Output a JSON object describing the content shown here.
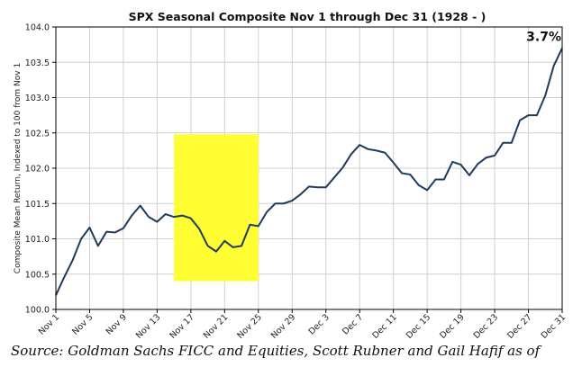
{
  "chart_data": {
    "type": "line",
    "title": "SPX Seasonal Composite Nov 1 through Dec 31 (1928 - )",
    "ylabel": "Composite Mean Return, Indexed to 100 from Nov 1",
    "xlabel": "",
    "ylim": [
      100.0,
      104.0
    ],
    "yticks": [
      100.0,
      100.5,
      101.0,
      101.5,
      102.0,
      102.5,
      103.0,
      103.5,
      104.0
    ],
    "ytick_labels": [
      "100.0",
      "100.5",
      "101.0",
      "101.5",
      "102.0",
      "102.5",
      "103.0",
      "103.5",
      "104.0"
    ],
    "x_range": [
      0,
      60
    ],
    "xticks": [
      0,
      4,
      8,
      12,
      16,
      20,
      24,
      28,
      32,
      36,
      40,
      44,
      48,
      52,
      56,
      60
    ],
    "xtick_labels": [
      "Nov 1",
      "Nov 5",
      "Nov 9",
      "Nov 13",
      "Nov 17",
      "Nov 21",
      "Nov 25",
      "Nov 29",
      "Dec 3",
      "Dec 7",
      "Dec 11",
      "Dec 15",
      "Dec 19",
      "Dec 23",
      "Dec 27",
      "Dec 31"
    ],
    "grid": true,
    "line_color": "#1f3b5c",
    "x": [
      0,
      1,
      2,
      3,
      4,
      5,
      6,
      7,
      8,
      9,
      10,
      11,
      12,
      13,
      14,
      15,
      16,
      17,
      18,
      19,
      20,
      21,
      22,
      23,
      24,
      25,
      26,
      27,
      28,
      29,
      30,
      31,
      32,
      33,
      34,
      35,
      36,
      37,
      38,
      39,
      40,
      41,
      42,
      43,
      44,
      45,
      46,
      47,
      48,
      49,
      50,
      51,
      52,
      53,
      54,
      55,
      56,
      57,
      58,
      59,
      60
    ],
    "values": [
      100.2,
      100.46,
      100.7,
      101.0,
      101.16,
      100.9,
      101.1,
      101.09,
      101.15,
      101.33,
      101.47,
      101.31,
      101.24,
      101.35,
      101.31,
      101.33,
      101.29,
      101.14,
      100.9,
      100.82,
      100.97,
      100.88,
      100.9,
      101.2,
      101.18,
      101.38,
      101.5,
      101.5,
      101.54,
      101.63,
      101.74,
      101.73,
      101.73,
      101.87,
      102.01,
      102.2,
      102.33,
      102.27,
      102.25,
      102.22,
      102.08,
      101.93,
      101.91,
      101.76,
      101.69,
      101.84,
      101.84,
      102.09,
      102.05,
      101.9,
      102.06,
      102.15,
      102.18,
      102.36,
      102.36,
      102.68,
      102.75,
      102.75,
      103.03,
      103.45,
      103.7
    ],
    "highlight": {
      "x_start": 14,
      "x_end": 24,
      "y_start": 100.4,
      "y_end": 102.48,
      "color": "#ffff33"
    },
    "end_label": "3.7%"
  },
  "source_text": "Source: Goldman Sachs FICC and Equities, Scott Rubner and Gail Hafif as of"
}
